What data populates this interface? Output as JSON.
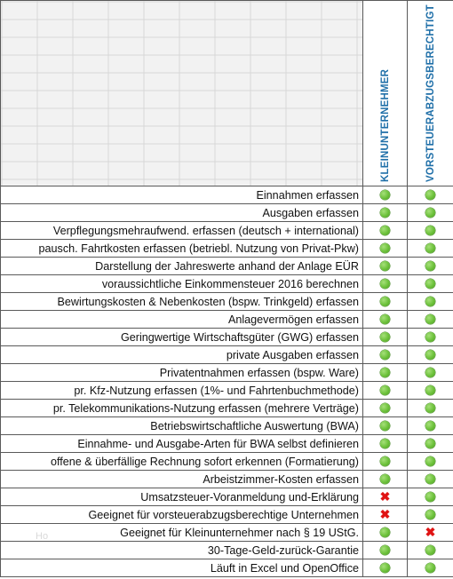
{
  "columns": [
    "KLEINUNTERNEHMER",
    "VORSTEUERABZUGSBERECHTIGT"
  ],
  "colors": {
    "header_text": "#1f6fa8",
    "yes": "#6cc13a",
    "no": "#e01414"
  },
  "rows": [
    {
      "feature": "Einnahmen erfassen",
      "klein": "yes",
      "vorsteuer": "yes"
    },
    {
      "feature": "Ausgaben erfassen",
      "klein": "yes",
      "vorsteuer": "yes"
    },
    {
      "feature": "Verpflegungsmehraufwend. erfassen (deutsch + international)",
      "klein": "yes",
      "vorsteuer": "yes"
    },
    {
      "feature": "pausch. Fahrtkosten erfassen (betriebl. Nutzung von Privat-Pkw)",
      "klein": "yes",
      "vorsteuer": "yes"
    },
    {
      "feature": "Darstellung der Jahreswerte anhand der Anlage EÜR",
      "klein": "yes",
      "vorsteuer": "yes"
    },
    {
      "feature": "voraussichtliche Einkommensteuer 2016 berechnen",
      "klein": "yes",
      "vorsteuer": "yes"
    },
    {
      "feature": "Bewirtungskosten & Nebenkosten (bspw. Trinkgeld) erfassen",
      "klein": "yes",
      "vorsteuer": "yes"
    },
    {
      "feature": "Anlagevermögen erfassen",
      "klein": "yes",
      "vorsteuer": "yes"
    },
    {
      "feature": "Geringwertige Wirtschaftsgüter (GWG) erfassen",
      "klein": "yes",
      "vorsteuer": "yes"
    },
    {
      "feature": "private Ausgaben erfassen",
      "klein": "yes",
      "vorsteuer": "yes"
    },
    {
      "feature": "Privatentnahmen erfassen (bspw. Ware)",
      "klein": "yes",
      "vorsteuer": "yes"
    },
    {
      "feature": "pr. Kfz-Nutzung erfassen (1%- und Fahrtenbuchmethode)",
      "klein": "yes",
      "vorsteuer": "yes"
    },
    {
      "feature": "pr. Telekommunikations-Nutzung erfassen (mehrere Verträge)",
      "klein": "yes",
      "vorsteuer": "yes"
    },
    {
      "feature": "Betriebswirtschaftliche Auswertung (BWA)",
      "klein": "yes",
      "vorsteuer": "yes"
    },
    {
      "feature": "Einnahme- und Ausgabe-Arten für BWA selbst definieren",
      "klein": "yes",
      "vorsteuer": "yes"
    },
    {
      "feature": "offene & überfällige Rechnung sofort erkennen (Formatierung)",
      "klein": "yes",
      "vorsteuer": "yes"
    },
    {
      "feature": "Arbeistzimmer-Kosten erfassen",
      "klein": "yes",
      "vorsteuer": "yes"
    },
    {
      "feature": "Umsatzsteuer-Voranmeldung und-Erklärung",
      "klein": "no",
      "vorsteuer": "yes"
    },
    {
      "feature": "Geeignet für vorsteuerabzugsberechtige Unternehmen",
      "klein": "no",
      "vorsteuer": "yes"
    },
    {
      "feature": "Geeignet für Kleinunternehmer nach § 19 UStG.",
      "klein": "yes",
      "vorsteuer": "no"
    },
    {
      "feature": "30-Tage-Geld-zurück-Garantie",
      "klein": "yes",
      "vorsteuer": "yes"
    },
    {
      "feature": "Läuft in Excel und OpenOffice",
      "klein": "yes",
      "vorsteuer": "yes"
    }
  ]
}
